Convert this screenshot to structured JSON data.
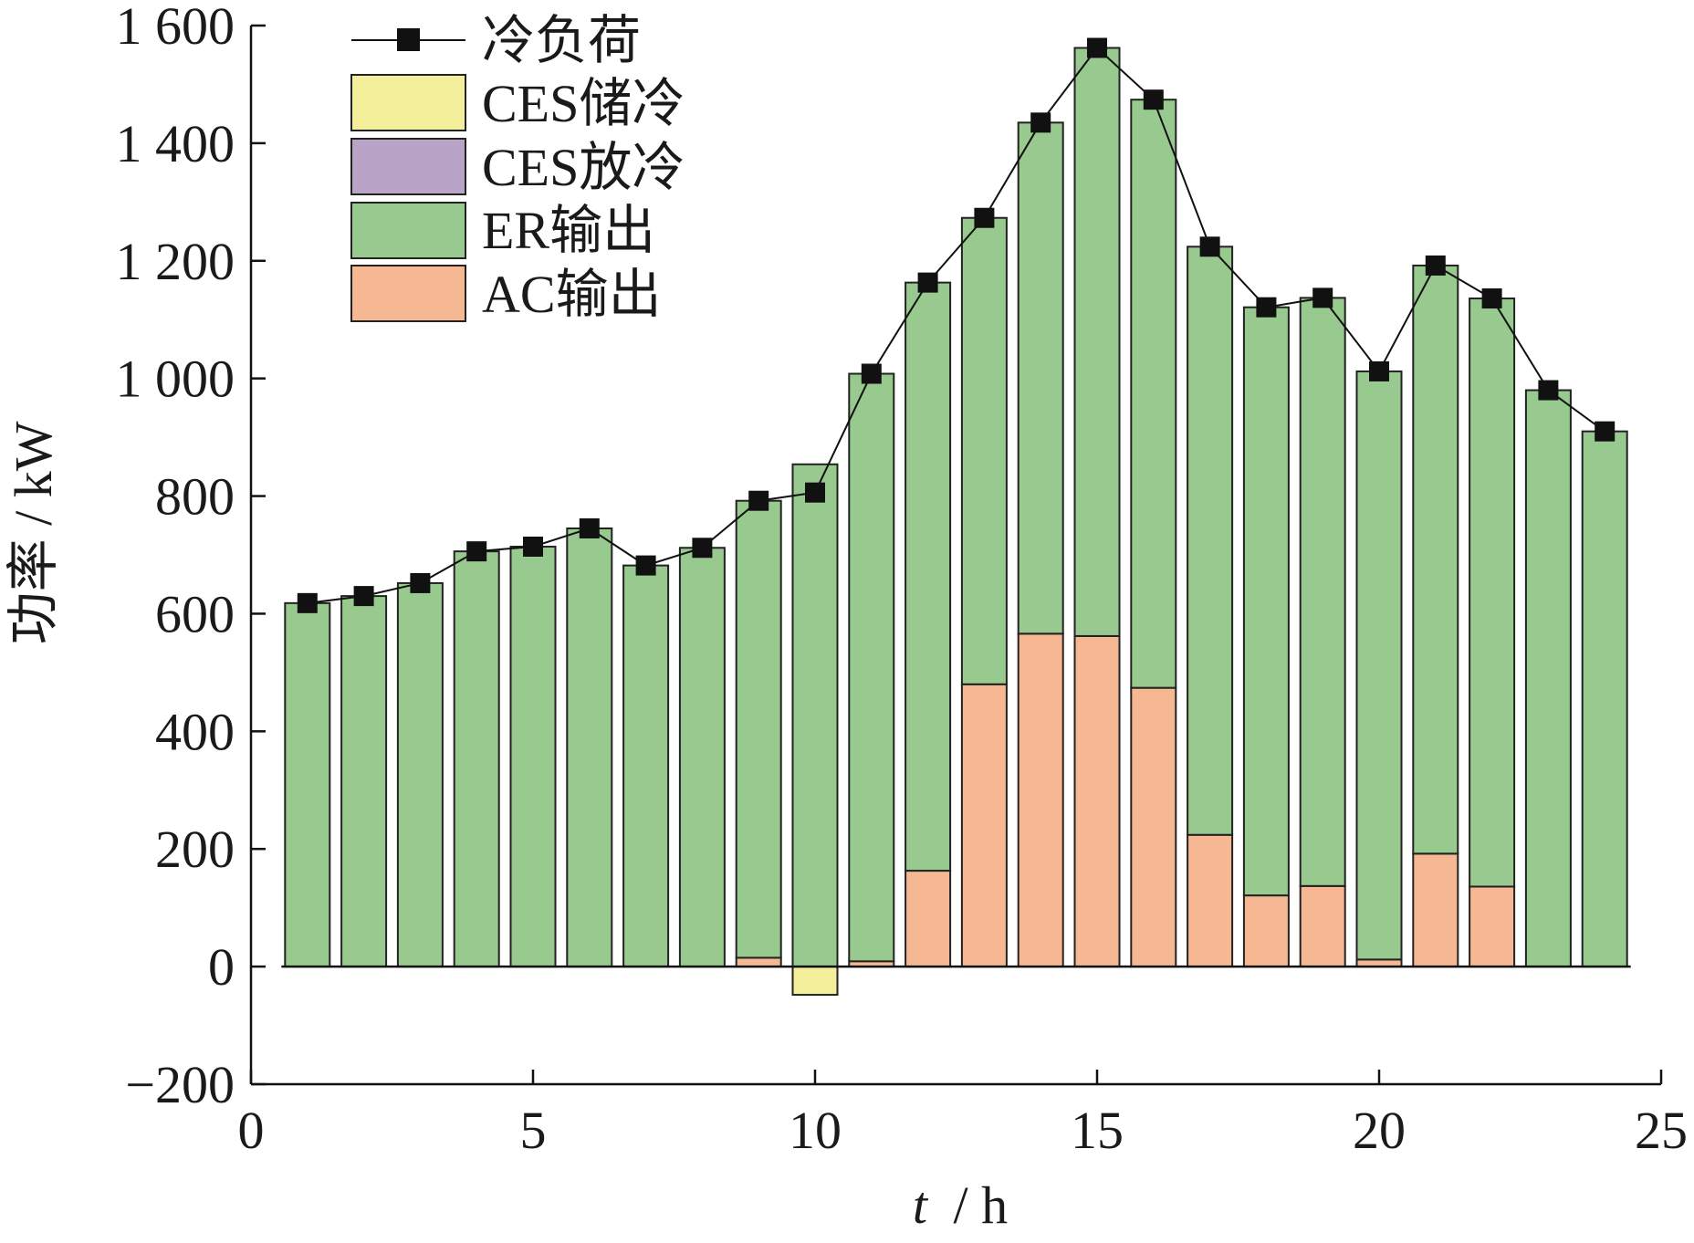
{
  "chart_data": {
    "type": "bar",
    "title": "",
    "xlabel_var": "t",
    "xlabel_unit": "/ h",
    "ylabel": "功率 / kW",
    "xlim": [
      0,
      25
    ],
    "ylim": [
      -200,
      1600
    ],
    "xticks": [
      0,
      5,
      10,
      15,
      20,
      25
    ],
    "xtick_labels": [
      "0",
      "5",
      "10",
      "15",
      "20",
      "25"
    ],
    "yticks": [
      -200,
      0,
      200,
      400,
      600,
      800,
      1000,
      1200,
      1400,
      1600
    ],
    "ytick_labels": [
      "−200",
      "0",
      "200",
      "400",
      "600",
      "800",
      "1 000",
      "1 200",
      "1 400",
      "1 600"
    ],
    "grid": false,
    "legend_position": "top-left",
    "x": [
      1,
      2,
      3,
      4,
      5,
      6,
      7,
      8,
      9,
      10,
      11,
      12,
      13,
      14,
      15,
      16,
      17,
      18,
      19,
      20,
      21,
      22,
      23,
      24
    ],
    "series": [
      {
        "name": "冷负荷",
        "type": "line",
        "color": "#111111",
        "values": [
          618,
          630,
          652,
          706,
          714,
          745,
          682,
          712,
          792,
          806,
          1008,
          1163,
          1273,
          1435,
          1562,
          1474,
          1224,
          1121,
          1137,
          1012,
          1192,
          1136,
          980,
          910
        ]
      },
      {
        "name": "CES储冷",
        "type": "bar",
        "color": "#f4ef9a",
        "values": [
          0,
          0,
          0,
          0,
          0,
          0,
          0,
          0,
          0,
          -48,
          0,
          0,
          0,
          0,
          0,
          0,
          0,
          0,
          0,
          0,
          0,
          0,
          0,
          0
        ]
      },
      {
        "name": "CES放冷",
        "type": "bar",
        "color": "#b9a4c8",
        "values": [
          0,
          0,
          0,
          0,
          0,
          0,
          0,
          0,
          0,
          0,
          0,
          0,
          0,
          0,
          0,
          0,
          0,
          0,
          0,
          0,
          0,
          0,
          0,
          0
        ]
      },
      {
        "name": "ER输出",
        "type": "bar",
        "color": "#98c98e",
        "values": [
          618,
          630,
          652,
          706,
          714,
          745,
          682,
          712,
          777,
          854,
          999,
          1000,
          793,
          869,
          1000,
          1000,
          1000,
          1000,
          1000,
          1000,
          1000,
          1000,
          980,
          910
        ]
      },
      {
        "name": "AC输出",
        "type": "bar",
        "color": "#f5b892",
        "values": [
          0,
          0,
          0,
          0,
          0,
          0,
          0,
          0,
          15,
          0,
          9,
          163,
          480,
          566,
          562,
          474,
          224,
          121,
          137,
          12,
          192,
          136,
          0,
          0
        ]
      }
    ],
    "legend": [
      "冷负荷",
      "CES储冷",
      "CES放冷",
      "ER输出",
      "AC输出"
    ]
  }
}
